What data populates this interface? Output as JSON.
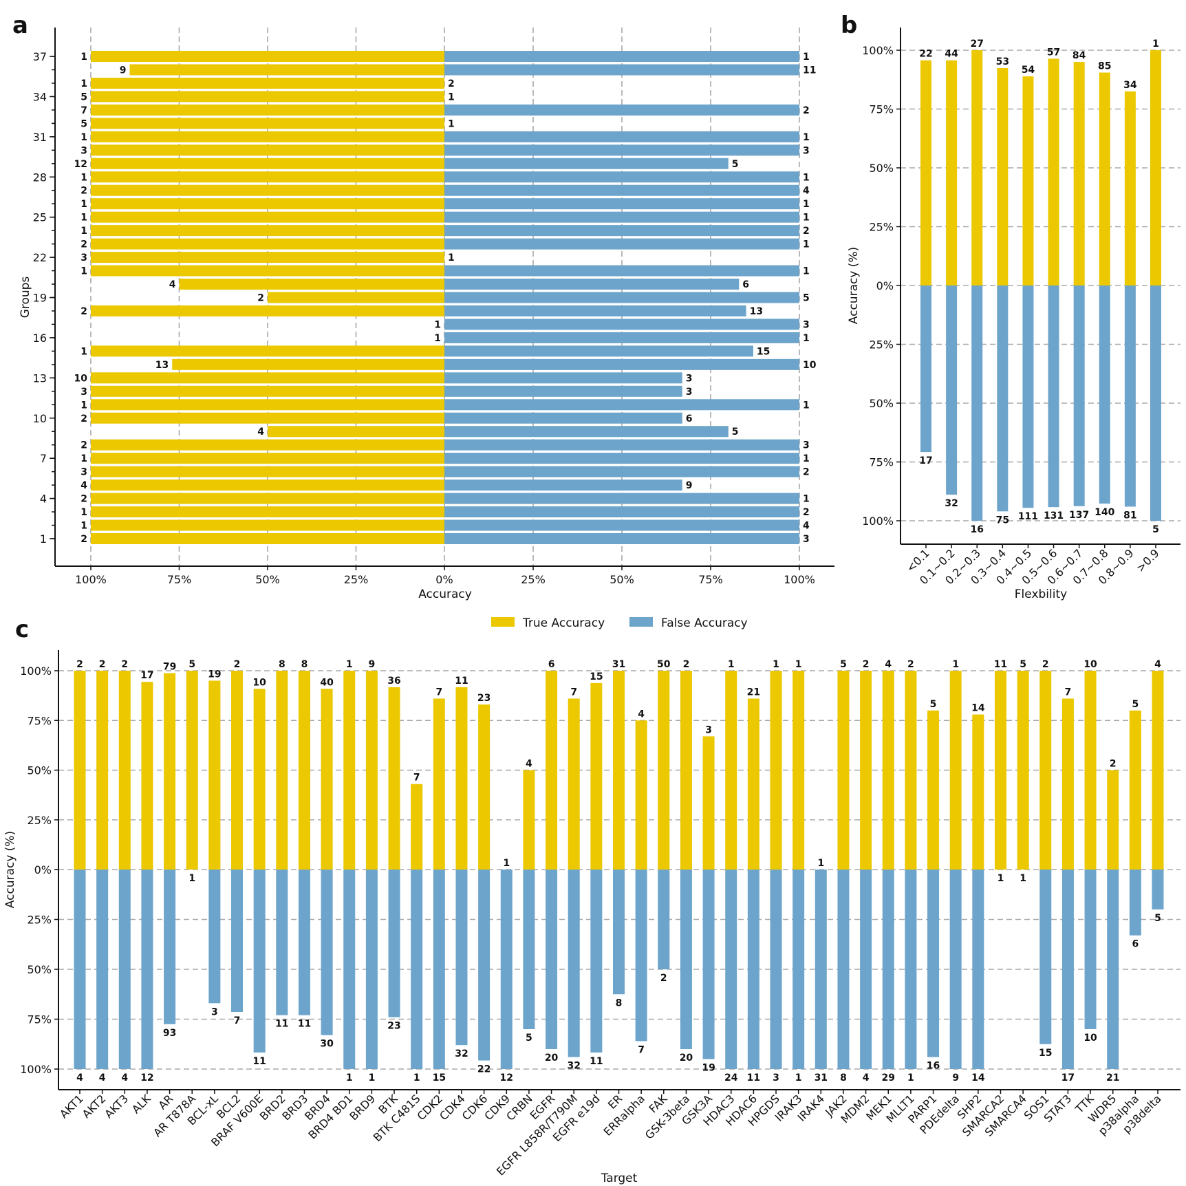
{
  "colors": {
    "true": "#ebc800",
    "false": "#6ca4cb",
    "grid": "#a8a8a8",
    "axis": "#111111"
  },
  "legend": {
    "true_label": "True Accuracy",
    "false_label": "False Accuracy",
    "placement": "top-center between panels"
  },
  "chart_data": [
    {
      "panel": "a",
      "type": "bar",
      "orientation": "horizontal-diverging",
      "ylabel": "Groups",
      "xlabel": "Accuracy",
      "xticks_left": [
        "100%",
        "75%",
        "50%",
        "25%",
        "0%"
      ],
      "xticks_right": [
        "25%",
        "50%",
        "75%",
        "100%"
      ],
      "yticks": [
        "1",
        "4",
        "7",
        "10",
        "13",
        "16",
        "19",
        "22",
        "25",
        "28",
        "31",
        "34",
        "37"
      ],
      "grid": "vertical dashed",
      "xlim": [
        -100,
        100
      ],
      "groups": [
        37,
        36,
        35,
        34,
        33,
        32,
        31,
        30,
        29,
        28,
        27,
        26,
        25,
        24,
        23,
        22,
        21,
        20,
        19,
        18,
        17,
        16,
        15,
        14,
        13,
        12,
        11,
        10,
        9,
        8,
        7,
        6,
        5,
        4,
        3,
        2,
        1
      ],
      "series": [
        {
          "name": "True Accuracy",
          "values_pct": [
            100,
            89,
            100,
            100,
            100,
            100,
            100,
            100,
            100,
            100,
            100,
            100,
            100,
            100,
            100,
            100,
            100,
            75,
            50,
            100,
            0,
            0,
            100,
            77,
            100,
            100,
            100,
            100,
            50,
            100,
            100,
            100,
            100,
            100,
            100,
            100,
            100
          ],
          "labels": [
            1,
            9,
            1,
            5,
            7,
            5,
            1,
            3,
            12,
            1,
            2,
            1,
            1,
            1,
            2,
            3,
            1,
            4,
            2,
            2,
            1,
            1,
            1,
            13,
            10,
            3,
            1,
            2,
            4,
            2,
            1,
            3,
            4,
            2,
            1,
            1,
            2
          ]
        },
        {
          "name": "False Accuracy",
          "values_pct": [
            100,
            100,
            0,
            0,
            100,
            0,
            100,
            100,
            80,
            100,
            100,
            100,
            100,
            100,
            100,
            0,
            100,
            83,
            100,
            85,
            100,
            100,
            87,
            100,
            67,
            67,
            100,
            67,
            80,
            100,
            100,
            100,
            67,
            100,
            100,
            100,
            100
          ],
          "labels": [
            1,
            11,
            2,
            1,
            2,
            1,
            1,
            3,
            5,
            1,
            4,
            1,
            1,
            2,
            1,
            1,
            1,
            6,
            5,
            13,
            3,
            1,
            15,
            10,
            3,
            3,
            1,
            6,
            5,
            3,
            1,
            2,
            9,
            1,
            2,
            4,
            3
          ]
        }
      ]
    },
    {
      "panel": "b",
      "type": "bar",
      "orientation": "vertical-diverging",
      "xlabel": "Flexbility",
      "ylabel": "Accuracy (%)",
      "yticks": [
        "100%",
        "75%",
        "50%",
        "25%",
        "0%",
        "25%",
        "50%",
        "75%",
        "100%"
      ],
      "ylim": [
        -100,
        100
      ],
      "grid": "horizontal dashed",
      "categories": [
        "<0.1",
        "0.1~0.2",
        "0.2~0.3",
        "0.3~0.4",
        "0.4~0.5",
        "0.5~0.6",
        "0.6~0.7",
        "0.7~0.8",
        "0.8~0.9",
        ">0.9"
      ],
      "series": [
        {
          "name": "True Accuracy",
          "values_pct": [
            95.7,
            95.7,
            100,
            92.4,
            88.9,
            96.4,
            95.0,
            90.5,
            82.5,
            100
          ],
          "labels": [
            22,
            44,
            27,
            53,
            54,
            57,
            84,
            85,
            34,
            1
          ]
        },
        {
          "name": "False Accuracy",
          "values_pct": [
            70.8,
            88.9,
            100,
            96.0,
            94.5,
            94.2,
            93.8,
            92.7,
            94.0,
            100
          ],
          "labels": [
            17,
            32,
            16,
            75,
            111,
            131,
            137,
            140,
            81,
            5
          ]
        }
      ]
    },
    {
      "panel": "c",
      "type": "bar",
      "orientation": "vertical-diverging",
      "xlabel": "Target",
      "ylabel": "Accuracy (%)",
      "yticks": [
        "100%",
        "75%",
        "50%",
        "25%",
        "0%",
        "25%",
        "50%",
        "75%",
        "100%"
      ],
      "ylim": [
        -100,
        100
      ],
      "grid": "horizontal dashed",
      "categories": [
        "AKT1",
        "AKT2",
        "AKT3",
        "ALK",
        "AR",
        "AR T878A",
        "BCL-xL",
        "BCL2",
        "BRAF V600E",
        "BRD2",
        "BRD3",
        "BRD4",
        "BRD4 BD1",
        "BRD9",
        "BTK",
        "BTK C481S",
        "CDK2",
        "CDK4",
        "CDK6",
        "CDK9",
        "CRBN",
        "EGFR",
        "EGFR L858R/T790M",
        "EGFR e19d",
        "ER",
        "ERRalpha",
        "FAK",
        "GSK-3beta",
        "GSK3A",
        "HDAC3",
        "HDAC6",
        "HPGDS",
        "IRAK3",
        "IRAK4",
        "JAK2",
        "MDM2",
        "MEK1",
        "MLLT1",
        "PARP1",
        "PDEdelta",
        "SHP2",
        "SMARCA2",
        "SMARCA4",
        "SOS1",
        "STAT3",
        "TTK",
        "WDR5",
        "p38alpha",
        "p38delta"
      ],
      "series": [
        {
          "name": "True Accuracy",
          "values_pct": [
            100,
            100,
            100,
            94.4,
            98.8,
            100,
            95,
            100,
            90.9,
            100,
            100,
            90.9,
            100,
            100,
            91.7,
            43,
            86,
            91.7,
            83,
            0,
            50,
            100,
            86,
            93.8,
            100,
            75,
            100,
            100,
            67,
            100,
            86,
            100,
            100,
            0,
            100,
            100,
            100,
            100,
            80,
            100,
            78,
            100,
            100,
            100,
            86,
            100,
            50,
            80,
            100
          ],
          "labels": [
            2,
            2,
            2,
            17,
            79,
            5,
            19,
            2,
            10,
            8,
            8,
            40,
            1,
            9,
            36,
            7,
            7,
            11,
            23,
            1,
            4,
            6,
            7,
            15,
            31,
            4,
            50,
            2,
            3,
            1,
            21,
            1,
            1,
            1,
            5,
            2,
            4,
            2,
            5,
            1,
            14,
            11,
            5,
            2,
            7,
            10,
            2,
            5,
            4
          ]
        },
        {
          "name": "False Accuracy",
          "values_pct": [
            100,
            100,
            100,
            100,
            77.5,
            0,
            67,
            71.4,
            91.7,
            73,
            73,
            83,
            100,
            100,
            74,
            100,
            100,
            88,
            95.7,
            100,
            80,
            90,
            94,
            91.7,
            62.5,
            86,
            50,
            90,
            95,
            100,
            100,
            100,
            100,
            100,
            100,
            100,
            100,
            100,
            94,
            100,
            100,
            0,
            0,
            87.5,
            100,
            80,
            100,
            33,
            20
          ],
          "labels": [
            4,
            4,
            4,
            12,
            93,
            1,
            3,
            7,
            11,
            11,
            11,
            30,
            1,
            1,
            23,
            1,
            15,
            32,
            22,
            12,
            5,
            20,
            32,
            11,
            8,
            7,
            2,
            20,
            19,
            24,
            11,
            3,
            1,
            31,
            8,
            4,
            29,
            1,
            16,
            9,
            14,
            1,
            1,
            15,
            17,
            10,
            21,
            6,
            5
          ]
        }
      ]
    }
  ],
  "panels": {
    "a": "a",
    "b": "b",
    "c": "c"
  },
  "titles": {
    "a_xlabel": "Accuracy",
    "a_ylabel": "Groups",
    "b_xlabel": "Flexbility",
    "b_ylabel": "Accuracy (%)",
    "c_xlabel": "Target",
    "c_ylabel": "Accuracy (%)"
  }
}
